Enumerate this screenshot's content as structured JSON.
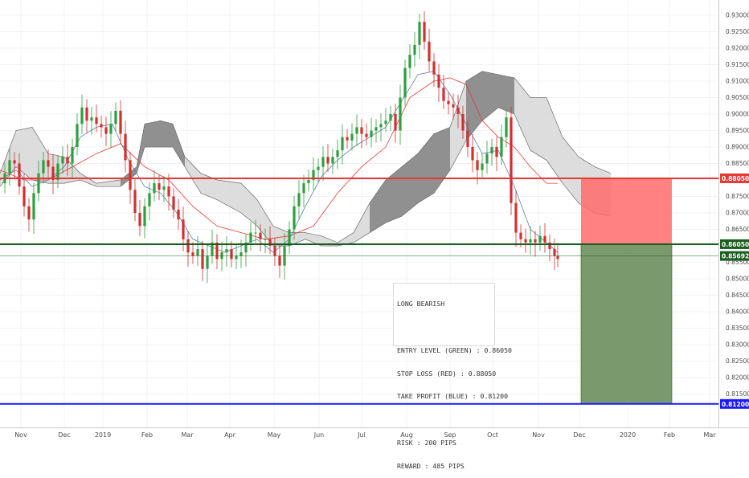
{
  "chart_data": {
    "type": "candlestick",
    "instrument_note": "",
    "y_axis": {
      "min": 0.81,
      "max": 0.933,
      "ticks": [
        "0.93000",
        "0.92500",
        "0.92000",
        "0.91500",
        "0.91000",
        "0.90500",
        "0.90000",
        "0.89500",
        "0.89000",
        "0.88500",
        "0.88000",
        "0.87500",
        "0.87000",
        "0.86500",
        "0.86000",
        "0.85500",
        "0.85000",
        "0.84500",
        "0.84000",
        "0.83500",
        "0.83000",
        "0.82500",
        "0.82000",
        "0.81500"
      ]
    },
    "x_axis": {
      "labels": [
        "Nov",
        "Dec",
        "2019",
        "Feb",
        "Mar",
        "Apr",
        "May",
        "Jun",
        "Jul",
        "Aug",
        "Sep",
        "Oct",
        "Nov",
        "Dec",
        "2020",
        "Feb",
        "Mar"
      ]
    },
    "levels": {
      "entry": {
        "label": "0.86050",
        "value": 0.8605,
        "color": "#1b5e20"
      },
      "stop_loss": {
        "label": "0.88050",
        "value": 0.8805,
        "color": "#e53935"
      },
      "take_profit": {
        "label": "0.81200",
        "value": 0.812,
        "color": "#1a1aff"
      },
      "current_price": {
        "label": "0.85692",
        "value": 0.85692,
        "color": "#1b5e20"
      }
    },
    "colors": {
      "up": "#2e9e3e",
      "down": "#d32f2f",
      "cloud_dark": "#8a8a8a",
      "cloud_light": "#d9d9d9",
      "risk_zone": "#ff6b6b",
      "reward_zone": "#6b8f5e"
    },
    "price_path": [
      [
        0,
        0.879
      ],
      [
        6,
        0.882
      ],
      [
        12,
        0.886
      ],
      [
        18,
        0.885
      ],
      [
        24,
        0.878
      ],
      [
        30,
        0.872
      ],
      [
        36,
        0.868
      ],
      [
        42,
        0.876
      ],
      [
        48,
        0.882
      ],
      [
        54,
        0.886
      ],
      [
        60,
        0.884
      ],
      [
        66,
        0.88
      ],
      [
        72,
        0.885
      ],
      [
        78,
        0.887
      ],
      [
        84,
        0.885
      ],
      [
        90,
        0.89
      ],
      [
        96,
        0.897
      ],
      [
        102,
        0.902
      ],
      [
        108,
        0.898
      ],
      [
        114,
        0.899
      ],
      [
        120,
        0.897
      ],
      [
        126,
        0.896
      ],
      [
        132,
        0.894
      ],
      [
        138,
        0.897
      ],
      [
        144,
        0.901
      ],
      [
        150,
        0.894
      ],
      [
        156,
        0.886
      ],
      [
        162,
        0.877
      ],
      [
        168,
        0.87
      ],
      [
        174,
        0.866
      ],
      [
        180,
        0.872
      ],
      [
        186,
        0.876
      ],
      [
        192,
        0.879
      ],
      [
        198,
        0.877
      ],
      [
        204,
        0.878
      ],
      [
        210,
        0.875
      ],
      [
        216,
        0.871
      ],
      [
        222,
        0.868
      ],
      [
        228,
        0.862
      ],
      [
        234,
        0.858
      ],
      [
        240,
        0.857
      ],
      [
        246,
        0.859
      ],
      [
        252,
        0.853
      ],
      [
        258,
        0.857
      ],
      [
        264,
        0.861
      ],
      [
        270,
        0.856
      ],
      [
        276,
        0.858
      ],
      [
        282,
        0.859
      ],
      [
        288,
        0.856
      ],
      [
        294,
        0.857
      ],
      [
        300,
        0.858
      ],
      [
        306,
        0.861
      ],
      [
        312,
        0.864
      ],
      [
        318,
        0.864
      ],
      [
        324,
        0.862
      ],
      [
        330,
        0.862
      ],
      [
        336,
        0.86
      ],
      [
        342,
        0.857
      ],
      [
        348,
        0.854
      ],
      [
        354,
        0.86
      ],
      [
        360,
        0.865
      ],
      [
        366,
        0.872
      ],
      [
        372,
        0.876
      ],
      [
        378,
        0.879
      ],
      [
        384,
        0.88
      ],
      [
        390,
        0.883
      ],
      [
        396,
        0.884
      ],
      [
        402,
        0.887
      ],
      [
        408,
        0.885
      ],
      [
        414,
        0.887
      ],
      [
        420,
        0.889
      ],
      [
        426,
        0.893
      ],
      [
        432,
        0.892
      ],
      [
        438,
        0.894
      ],
      [
        444,
        0.896
      ],
      [
        450,
        0.894
      ],
      [
        456,
        0.893
      ],
      [
        462,
        0.895
      ],
      [
        468,
        0.896
      ],
      [
        474,
        0.897
      ],
      [
        480,
        0.898
      ],
      [
        486,
        0.9
      ],
      [
        492,
        0.895
      ],
      [
        498,
        0.905
      ],
      [
        504,
        0.914
      ],
      [
        510,
        0.918
      ],
      [
        516,
        0.921
      ],
      [
        522,
        0.928
      ],
      [
        528,
        0.922
      ],
      [
        534,
        0.916
      ],
      [
        540,
        0.912
      ],
      [
        546,
        0.908
      ],
      [
        552,
        0.904
      ],
      [
        558,
        0.903
      ],
      [
        564,
        0.902
      ],
      [
        570,
        0.9
      ],
      [
        576,
        0.895
      ],
      [
        582,
        0.89
      ],
      [
        588,
        0.886
      ],
      [
        594,
        0.883
      ],
      [
        600,
        0.885
      ],
      [
        606,
        0.888
      ],
      [
        612,
        0.89
      ],
      [
        618,
        0.887
      ],
      [
        624,
        0.893
      ],
      [
        630,
        0.899
      ],
      [
        636,
        0.873
      ],
      [
        642,
        0.864
      ],
      [
        648,
        0.862
      ],
      [
        654,
        0.861
      ],
      [
        660,
        0.862
      ],
      [
        666,
        0.861
      ],
      [
        672,
        0.863
      ],
      [
        678,
        0.861
      ],
      [
        684,
        0.859
      ],
      [
        690,
        0.857
      ],
      [
        694,
        0.856
      ]
    ],
    "tenkan_line": [
      [
        0,
        0.88
      ],
      [
        20,
        0.883
      ],
      [
        40,
        0.878
      ],
      [
        60,
        0.88
      ],
      [
        80,
        0.884
      ],
      [
        100,
        0.893
      ],
      [
        120,
        0.896
      ],
      [
        140,
        0.897
      ],
      [
        160,
        0.886
      ],
      [
        180,
        0.878
      ],
      [
        200,
        0.876
      ],
      [
        220,
        0.87
      ],
      [
        240,
        0.862
      ],
      [
        260,
        0.86
      ],
      [
        280,
        0.858
      ],
      [
        300,
        0.86
      ],
      [
        320,
        0.862
      ],
      [
        340,
        0.858
      ],
      [
        360,
        0.862
      ],
      [
        380,
        0.872
      ],
      [
        400,
        0.881
      ],
      [
        420,
        0.886
      ],
      [
        440,
        0.89
      ],
      [
        460,
        0.893
      ],
      [
        480,
        0.896
      ],
      [
        500,
        0.904
      ],
      [
        520,
        0.912
      ],
      [
        540,
        0.913
      ],
      [
        560,
        0.906
      ],
      [
        580,
        0.897
      ],
      [
        600,
        0.888
      ],
      [
        620,
        0.889
      ],
      [
        640,
        0.878
      ],
      [
        660,
        0.865
      ],
      [
        680,
        0.861
      ],
      [
        694,
        0.858
      ]
    ],
    "kijun_line": [
      [
        0,
        0.883
      ],
      [
        30,
        0.88
      ],
      [
        60,
        0.88
      ],
      [
        90,
        0.884
      ],
      [
        120,
        0.888
      ],
      [
        150,
        0.891
      ],
      [
        180,
        0.884
      ],
      [
        210,
        0.88
      ],
      [
        240,
        0.872
      ],
      [
        270,
        0.866
      ],
      [
        300,
        0.864
      ],
      [
        330,
        0.862
      ],
      [
        360,
        0.863
      ],
      [
        390,
        0.866
      ],
      [
        420,
        0.876
      ],
      [
        450,
        0.884
      ],
      [
        480,
        0.89
      ],
      [
        510,
        0.905
      ],
      [
        540,
        0.91
      ],
      [
        560,
        0.911
      ],
      [
        580,
        0.909
      ],
      [
        600,
        0.898
      ],
      [
        620,
        0.893
      ],
      [
        640,
        0.89
      ],
      [
        660,
        0.884
      ],
      [
        680,
        0.879
      ],
      [
        694,
        0.879
      ]
    ],
    "cloud_top": [
      [
        0,
        0.882
      ],
      [
        20,
        0.895
      ],
      [
        40,
        0.896
      ],
      [
        60,
        0.888
      ],
      [
        80,
        0.887
      ],
      [
        100,
        0.882
      ],
      [
        120,
        0.879
      ],
      [
        150,
        0.88
      ],
      [
        170,
        0.884
      ],
      [
        180,
        0.897
      ],
      [
        200,
        0.898
      ],
      [
        215,
        0.897
      ],
      [
        230,
        0.887
      ],
      [
        250,
        0.882
      ],
      [
        270,
        0.88
      ],
      [
        300,
        0.879
      ],
      [
        320,
        0.874
      ],
      [
        340,
        0.866
      ],
      [
        360,
        0.864
      ],
      [
        380,
        0.864
      ],
      [
        400,
        0.863
      ],
      [
        420,
        0.861
      ],
      [
        440,
        0.864
      ],
      [
        460,
        0.873
      ],
      [
        480,
        0.88
      ],
      [
        500,
        0.884
      ],
      [
        520,
        0.888
      ],
      [
        540,
        0.894
      ],
      [
        560,
        0.896
      ],
      [
        580,
        0.91
      ],
      [
        600,
        0.913
      ],
      [
        620,
        0.912
      ],
      [
        640,
        0.911
      ],
      [
        660,
        0.905
      ],
      [
        680,
        0.905
      ],
      [
        700,
        0.893
      ],
      [
        720,
        0.887
      ],
      [
        740,
        0.884
      ],
      [
        760,
        0.882
      ]
    ],
    "cloud_bottom": [
      [
        0,
        0.878
      ],
      [
        20,
        0.884
      ],
      [
        40,
        0.88
      ],
      [
        60,
        0.879
      ],
      [
        80,
        0.879
      ],
      [
        100,
        0.88
      ],
      [
        120,
        0.878
      ],
      [
        150,
        0.878
      ],
      [
        170,
        0.882
      ],
      [
        180,
        0.89
      ],
      [
        200,
        0.89
      ],
      [
        215,
        0.89
      ],
      [
        230,
        0.884
      ],
      [
        250,
        0.876
      ],
      [
        270,
        0.874
      ],
      [
        300,
        0.87
      ],
      [
        320,
        0.866
      ],
      [
        340,
        0.86
      ],
      [
        360,
        0.86
      ],
      [
        380,
        0.862
      ],
      [
        400,
        0.86
      ],
      [
        420,
        0.86
      ],
      [
        440,
        0.861
      ],
      [
        460,
        0.864
      ],
      [
        480,
        0.867
      ],
      [
        500,
        0.869
      ],
      [
        520,
        0.873
      ],
      [
        540,
        0.876
      ],
      [
        560,
        0.883
      ],
      [
        580,
        0.892
      ],
      [
        600,
        0.898
      ],
      [
        620,
        0.902
      ],
      [
        640,
        0.9
      ],
      [
        660,
        0.889
      ],
      [
        680,
        0.886
      ],
      [
        700,
        0.879
      ],
      [
        720,
        0.873
      ],
      [
        740,
        0.87
      ],
      [
        760,
        0.869
      ]
    ]
  },
  "annotation": {
    "title": "LONG BEARISH",
    "entry": "ENTRY LEVEL (GREEN) : 0.86050",
    "stop": "STOP LOSS (RED) : 0.88050",
    "take": "TAKE PROFIT (BLUE) : 0.81200",
    "risk": "RISK : 200 PIPS",
    "reward": "REWARD : 485 PIPS"
  }
}
